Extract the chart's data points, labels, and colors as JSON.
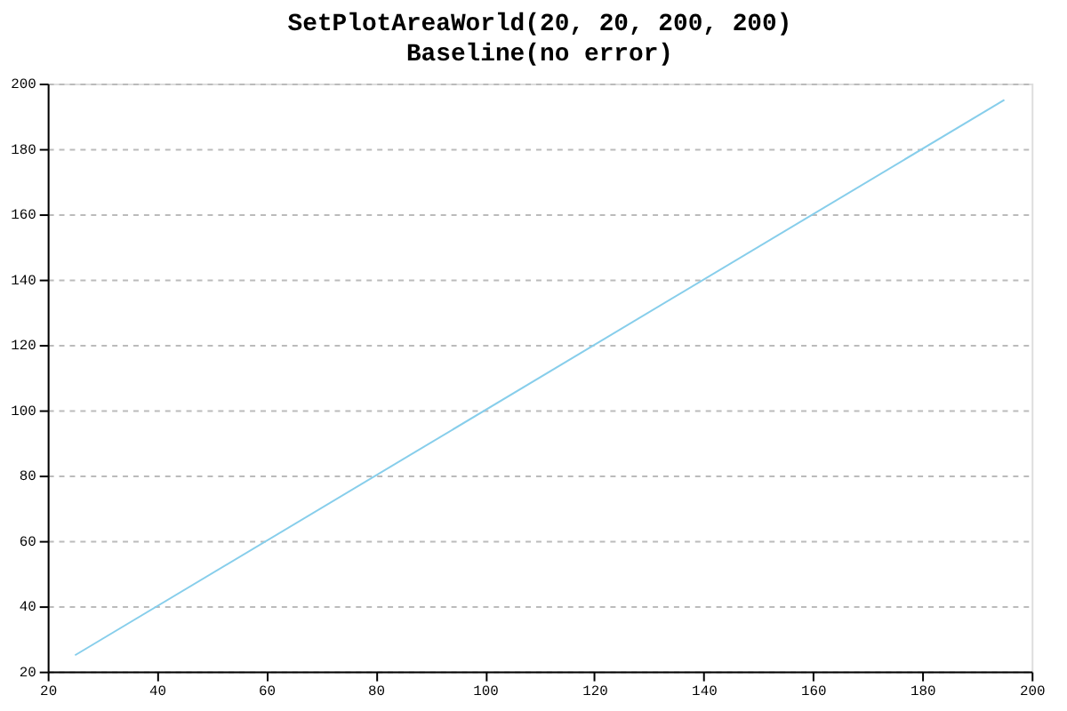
{
  "chart_data": {
    "type": "line",
    "title": "SetPlotAreaWorld(20, 20, 200, 200)",
    "subtitle": "Baseline(no error)",
    "x": [
      25,
      195
    ],
    "series": [
      {
        "color": "#87ceeb",
        "values": [
          25,
          195
        ]
      }
    ],
    "xlim": [
      20,
      200
    ],
    "xticks": [
      20,
      40,
      60,
      80,
      100,
      120,
      140,
      160,
      180,
      200
    ],
    "ylim": [
      20,
      200
    ],
    "yticks": [
      20,
      40,
      60,
      80,
      100,
      120,
      140,
      160,
      180,
      200
    ],
    "grid": "y",
    "marker": "none",
    "line_style": "solid"
  }
}
